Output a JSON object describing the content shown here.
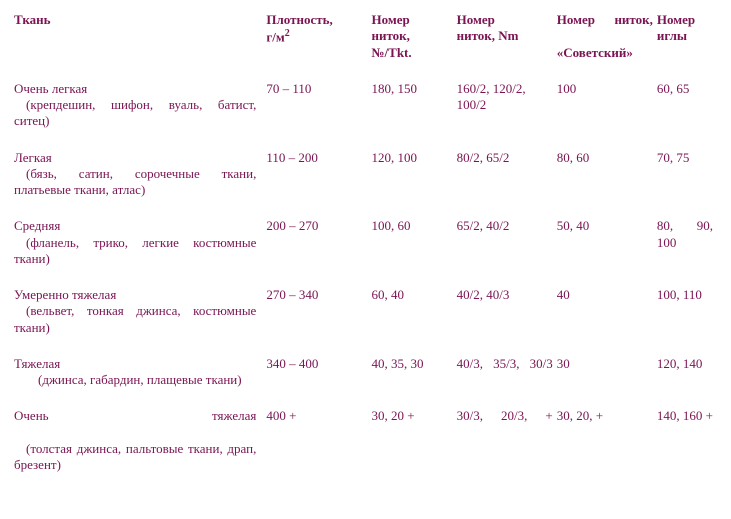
{
  "colors": {
    "text": "#7a1452",
    "background": "#ffffff"
  },
  "headers": {
    "fabric": "Ткань",
    "density_l1": "Плотность,",
    "density_l2": "г/м",
    "density_sup": "2",
    "thread_no_l1": "Номер",
    "thread_no_l2": "ниток,",
    "thread_no_l3": "№/Tkt.",
    "thread_nm_l1": "Номер",
    "thread_nm_l2": "ниток, Nm",
    "thread_sov_l1a": "Номер",
    "thread_sov_l1b": "ниток,",
    "thread_sov_l2": "«Советский»",
    "needle_l1": "Номер",
    "needle_l2": "иглы"
  },
  "rows": [
    {
      "name": "Очень легкая",
      "desc": "(крепдешин, шифон, вуаль, батист, ситец)",
      "density": "70 – 110",
      "tkt": "180, 150",
      "nm": "160/2, 120/2, 100/2",
      "sov": "100",
      "needle": "60, 65"
    },
    {
      "name": "Легкая",
      "desc": "(бязь, сатин, сорочечные ткани, платьевые ткани, атлас)",
      "density": "110 – 200",
      "tkt": "120, 100",
      "nm": "80/2, 65/2",
      "sov": "80, 60",
      "needle": "70, 75"
    },
    {
      "name": "Средняя",
      "desc": "(фланель, трико, легкие костюмные ткани)",
      "density": "200 – 270",
      "tkt": "100, 60",
      "nm": "65/2, 40/2",
      "sov": "50, 40",
      "needle": "80, 90, 100"
    },
    {
      "name": "Умеренно тяжелая",
      "desc": "(вельвет, тонкая джинса, костюмные ткани)",
      "density": "270 – 340",
      "tkt": "60, 40",
      "nm": "40/2, 40/3",
      "sov": "40",
      "needle": "100, 110"
    },
    {
      "name": "Тяжелая",
      "desc": "(джинса, габардин, плащевые ткани)",
      "density": "340 – 400",
      "tkt": "40, 35, 30",
      "nm": "40/3, 35/3, 30/3",
      "sov": "30",
      "needle": "120, 140"
    },
    {
      "name": "Очень тяжелая",
      "desc": "(толстая джинса, пальтовые ткани, драп, брезент)",
      "density": "400 +",
      "tkt": "30, 20 +",
      "nm": "30/3, 20/3, +",
      "sov": "30, 20, +",
      "needle": "140, 160 +"
    }
  ]
}
